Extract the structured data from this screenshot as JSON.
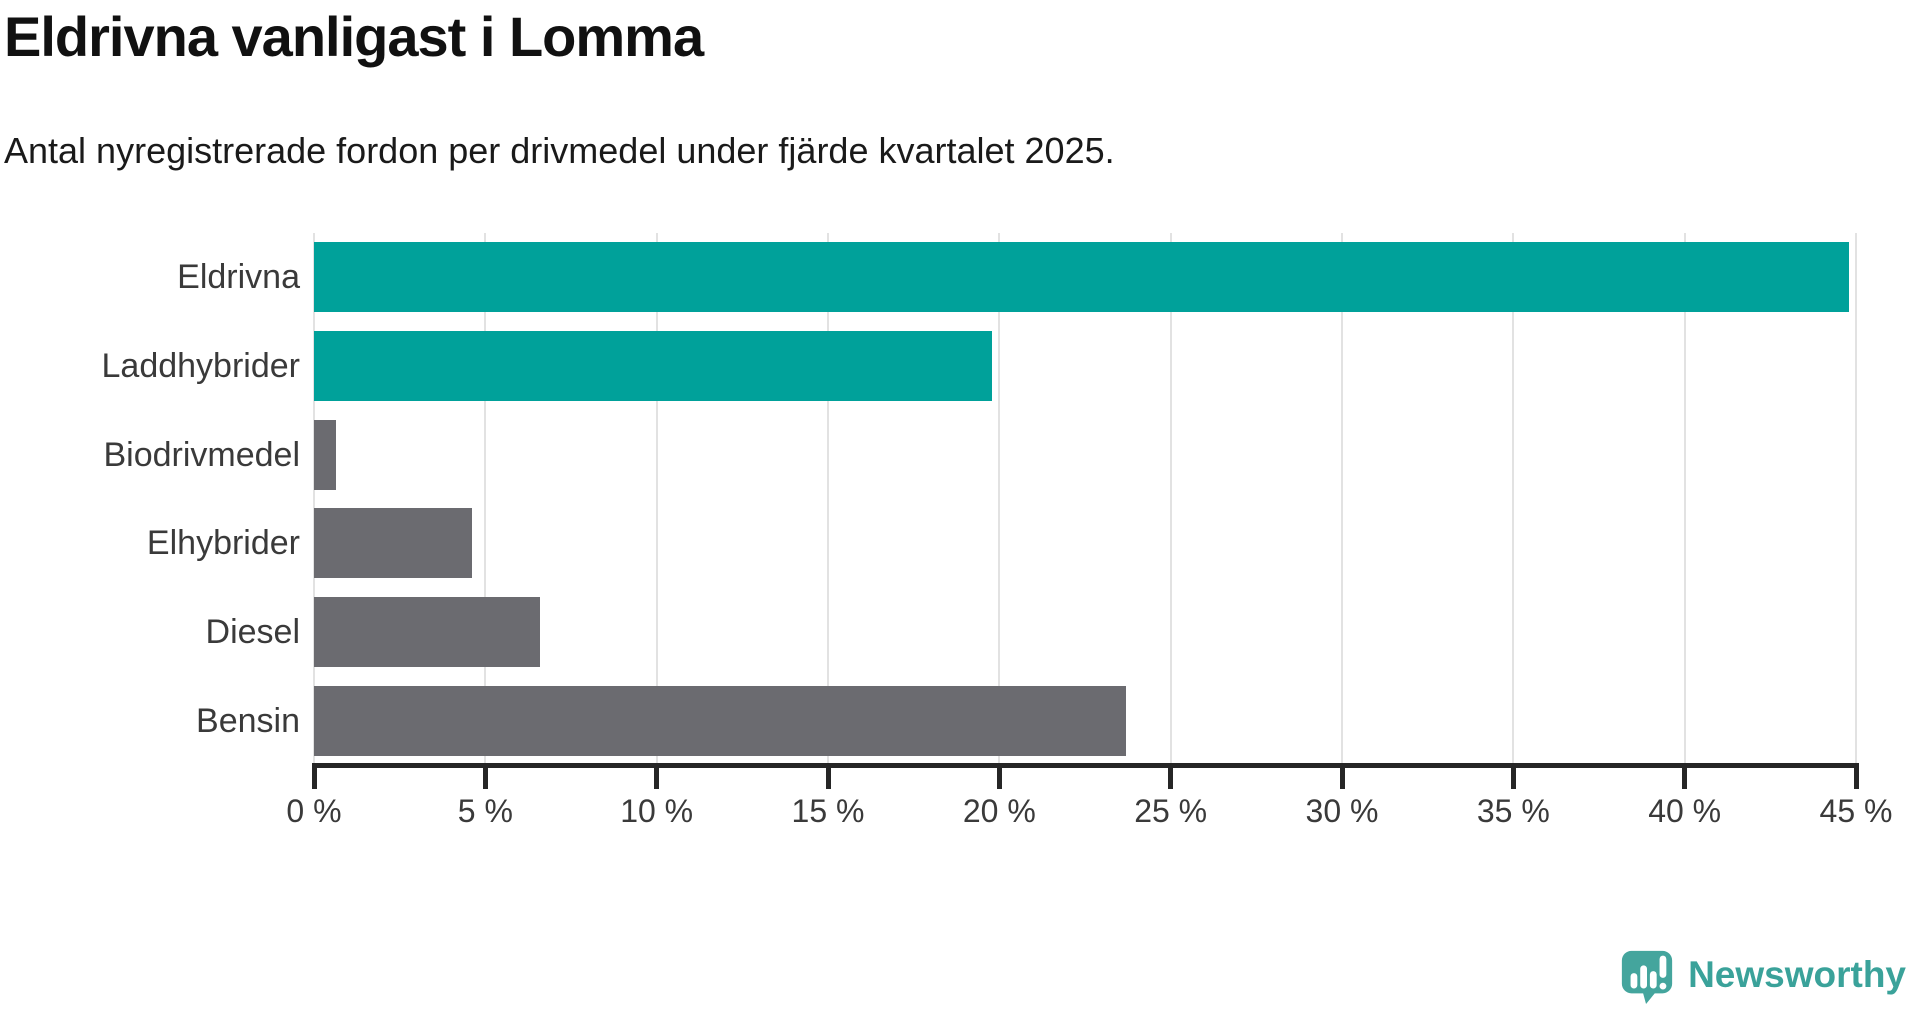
{
  "header": {
    "title": "Eldrivna vanligast i Lomma",
    "subtitle": "Antal nyregistrerade fordon per drivmedel under fjärde kvartalet 2025."
  },
  "chart_data": {
    "type": "bar",
    "orientation": "horizontal",
    "title": "Eldrivna vanligast i Lomma",
    "subtitle": "Antal nyregistrerade fordon per drivmedel under fjärde kvartalet 2025.",
    "categories": [
      "Eldrivna",
      "Laddhybrider",
      "Biodrivmedel",
      "Elhybrider",
      "Diesel",
      "Bensin"
    ],
    "values": [
      44.8,
      19.8,
      0.65,
      4.6,
      6.6,
      23.7
    ],
    "unit": "%",
    "bar_colors": [
      "#00a19a",
      "#00a19a",
      "#6b6b70",
      "#6b6b70",
      "#6b6b70",
      "#6b6b70"
    ],
    "xlabel": "",
    "ylabel": "",
    "xlim": [
      0,
      45
    ],
    "x_ticks": [
      0,
      5,
      10,
      15,
      20,
      25,
      30,
      35,
      40,
      45
    ],
    "x_tick_labels": [
      "0 %",
      "5 %",
      "10 %",
      "15 %",
      "20 %",
      "25 %",
      "30 %",
      "35 %",
      "40 %",
      "45 %"
    ],
    "grid": "vertical-only",
    "legend": "none"
  },
  "branding": {
    "logo_text": "Newsworthy",
    "logo_icon": "speech-bubble-with-bar-chart-and-exclamation",
    "logo_color": "#3aa29a"
  },
  "colors": {
    "accent_teal": "#00a19a",
    "bar_gray": "#6b6b70",
    "axis": "#262626",
    "gridline": "#e2e2e2",
    "title_text": "#111111",
    "body_text": "#3a3a3a"
  }
}
